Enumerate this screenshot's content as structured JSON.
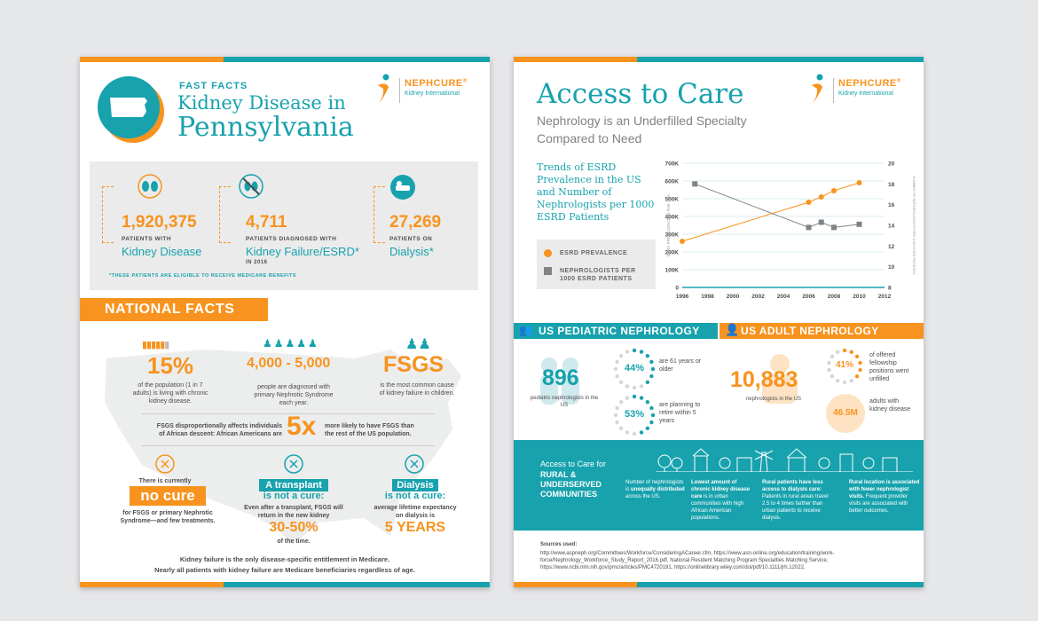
{
  "brand": {
    "name": "NEPHCURE",
    "trademark": "®",
    "sub": "Kidney International"
  },
  "page1": {
    "fast_facts": "FAST FACTS",
    "title_line1": "Kidney Disease in",
    "title_line2": "Pennsylvania",
    "stats": [
      {
        "value": "1,920,375",
        "label": "PATIENTS WITH",
        "big": "Kidney Disease",
        "note": "",
        "icon": "kidneys-icon"
      },
      {
        "value": "4,711",
        "label": "PATIENTS DIAGNOSED WITH",
        "big": "Kidney Failure/ESRD*",
        "note": "IN 2016",
        "icon": "no-kidney-icon"
      },
      {
        "value": "27,269",
        "label": "PATIENTS ON",
        "big": "Dialysis*",
        "note": "",
        "icon": "dialysis-icon"
      }
    ],
    "footnote": "*THESE PATIENTS ARE ELIGIBLE TO RECEIVE MEDICARE BENEFITS",
    "national_facts": "NATIONAL FACTS",
    "nf1_value": "15%",
    "nf1_text": "of the population (1 in 7 adults) is living with chronic kidney disease.",
    "nf2_value": "4,000 - 5,000",
    "nf2_text": "people are diagnosed with primary Nephrotic Syndrome each year.",
    "nf3_value": "FSGS",
    "nf3_text": "is the most common cause of kidney failure in children.",
    "nf4_left": "FSGS disproportionally affects individuals of African descent: African Americans are",
    "nf4_value": "5x",
    "nf4_right": "more likely to have FSGS than the rest of the US population.",
    "nf5_pre": "There is currently",
    "nf5_value": "no cure",
    "nf5_text": "for FSGS or primary Nephrotic Syndrome—and few treatments.",
    "nf6_title": "A transplant",
    "nf6_sub": "is not a cure:",
    "nf6_text": "Even after a transplant, FSGS will return in the new kidney",
    "nf6_value": "30-50%",
    "nf6_post": "of the time.",
    "nf7_title": "Dialysis",
    "nf7_sub": "is not a cure:",
    "nf7_text": "average lifetime expectancy on dialysis is",
    "nf7_value": "5 YEARS",
    "closing1": "Kidney failure is the only disease-specific entitlement in Medicare.",
    "closing2": "Nearly all patients with kidney failure are Medicare beneficiaries regardless of age."
  },
  "page2": {
    "title": "Access to Care",
    "subtitle1": "Nephrology is an Underfilled Specialty",
    "subtitle2": "Compared to Need",
    "chart_caption": "Trends of ESRD Prevalence in the US and Number of Nephrologists per 1000 ESRD Patients",
    "legend_esrd": "ESRD PREVALENCE",
    "legend_neph": "NEPHROLOGISTS PER 1000 ESRD PATIENTS",
    "pediatric_head": "US PEDIATRIC NEPHROLOGY",
    "adult_head": "US ADULT NEPHROLOGY",
    "ped_value": "896",
    "ped_text": "pediatric nephrologists in the US",
    "ped_pct1": "44%",
    "ped_pct1_text": "are 61 years or older",
    "ped_pct2": "53%",
    "ped_pct2_text": "are planning to retire within 5 years",
    "adult_value": "10,883",
    "adult_text": "nephrologists in the US",
    "adult_pct": "41%",
    "adult_pct_text": "of offered fellowship positions went unfilled",
    "adult_ckd": "46.5M",
    "adult_ckd_text": "adults with kidney disease",
    "rural_title1": "Access to Care for",
    "rural_title2": "RURAL & UNDERSERVED COMMUNITIES",
    "rural_items": [
      {
        "bold": "",
        "pre": "Number of nephrologists is ",
        "b2": "unequally distributed",
        "post": " across the US."
      },
      {
        "bold": "Lowest amount of chronic kidney disease care",
        "pre": " is in urban communities with high African American populations.",
        "b2": "",
        "post": ""
      },
      {
        "bold": "Rural patients have less access to dialysis care:",
        "pre": " Patients in rural areas travel 2.5 to 4 times farther than urban patients to receive dialysis.",
        "b2": "",
        "post": ""
      },
      {
        "bold": "Rural location is associated with fewer nephrologist visits.",
        "pre": " Frequent provider visits are associated with better outcomes.",
        "b2": "",
        "post": ""
      }
    ],
    "sources_label": "Sources used:",
    "sources_text": "http://www.aspneph.org/Committees/Workforce/ConsideringACareer.cfm, https://www.asn-online.org/education/training/work-force/Nephrology_Workforce_Study_Report_2016.pdf, National Resident Matching Program Specialties Matching Service, https://www.ncbi.nlm.nih.gov/pmc/articles/PMC4720191, https://onlinelibrary.wiley.com/doi/pdf/10.1111/jrh.12022."
  },
  "chart_data": {
    "type": "line",
    "xlim": [
      1996,
      2012
    ],
    "x_ticks": [
      "1996",
      "1998",
      "2000",
      "2002",
      "2004",
      "2006",
      "2008",
      "2010",
      "2012"
    ],
    "ylabel": "ESRD PREVALENCE IN THE USA",
    "ylim": [
      0,
      700000
    ],
    "y_ticks": [
      "0",
      "100K",
      "200K",
      "300K",
      "400K",
      "500K",
      "600K",
      "700K"
    ],
    "y2label": "NUMBER OF NEPHROLOGISTS PER 1000 ESRD PATIENTS",
    "y2lim": [
      8,
      20
    ],
    "y2_ticks": [
      "8",
      "10",
      "12",
      "14",
      "16",
      "18",
      "20"
    ],
    "series": [
      {
        "name": "ESRD PREVALENCE",
        "axis": "left",
        "color": "#f7931e",
        "marker": "circle",
        "x": [
          1996,
          2006,
          2007,
          2008,
          2010
        ],
        "y": [
          260000,
          480000,
          510000,
          545000,
          590000
        ]
      },
      {
        "name": "NEPHROLOGISTS PER 1000 ESRD PATIENTS",
        "axis": "right",
        "color": "#808285",
        "marker": "square",
        "x": [
          1997,
          2006,
          2007,
          2008,
          2010
        ],
        "y": [
          18,
          13.8,
          14.3,
          13.8,
          14.1
        ]
      }
    ]
  }
}
